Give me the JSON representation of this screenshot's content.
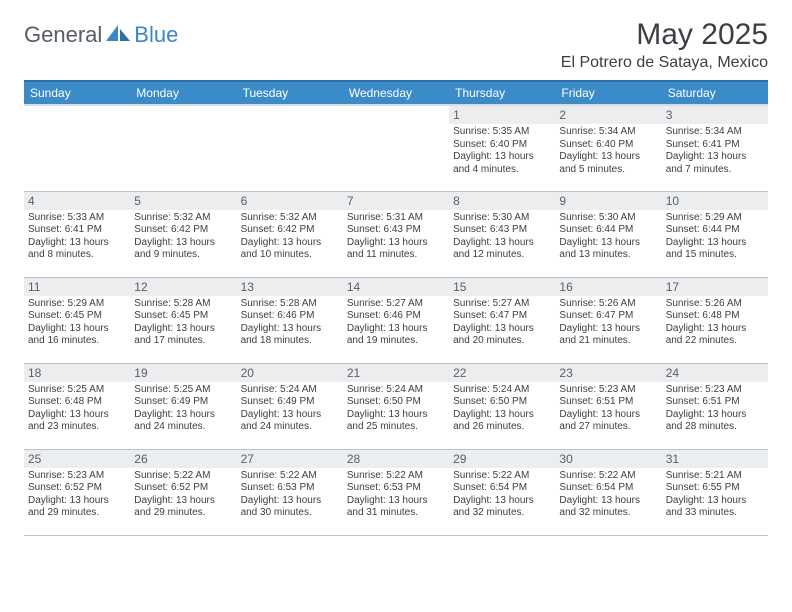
{
  "logo": {
    "general": "General",
    "blue": "Blue"
  },
  "title": "May 2025",
  "location": "El Potrero de Sataya, Mexico",
  "colors": {
    "header_bg": "#3b8bc9",
    "header_border_top": "#2f6fa7",
    "daynum_bg": "#ebedef",
    "cell_border": "#b9c1c9",
    "text": "#3a3f44",
    "logo_gray": "#555d66",
    "logo_blue": "#3a86c8"
  },
  "day_names": [
    "Sunday",
    "Monday",
    "Tuesday",
    "Wednesday",
    "Thursday",
    "Friday",
    "Saturday"
  ],
  "weeks": [
    [
      null,
      null,
      null,
      null,
      {
        "n": "1",
        "sr": "5:35 AM",
        "ss": "6:40 PM",
        "dl": "13 hours and 4 minutes."
      },
      {
        "n": "2",
        "sr": "5:34 AM",
        "ss": "6:40 PM",
        "dl": "13 hours and 5 minutes."
      },
      {
        "n": "3",
        "sr": "5:34 AM",
        "ss": "6:41 PM",
        "dl": "13 hours and 7 minutes."
      }
    ],
    [
      {
        "n": "4",
        "sr": "5:33 AM",
        "ss": "6:41 PM",
        "dl": "13 hours and 8 minutes."
      },
      {
        "n": "5",
        "sr": "5:32 AM",
        "ss": "6:42 PM",
        "dl": "13 hours and 9 minutes."
      },
      {
        "n": "6",
        "sr": "5:32 AM",
        "ss": "6:42 PM",
        "dl": "13 hours and 10 minutes."
      },
      {
        "n": "7",
        "sr": "5:31 AM",
        "ss": "6:43 PM",
        "dl": "13 hours and 11 minutes."
      },
      {
        "n": "8",
        "sr": "5:30 AM",
        "ss": "6:43 PM",
        "dl": "13 hours and 12 minutes."
      },
      {
        "n": "9",
        "sr": "5:30 AM",
        "ss": "6:44 PM",
        "dl": "13 hours and 13 minutes."
      },
      {
        "n": "10",
        "sr": "5:29 AM",
        "ss": "6:44 PM",
        "dl": "13 hours and 15 minutes."
      }
    ],
    [
      {
        "n": "11",
        "sr": "5:29 AM",
        "ss": "6:45 PM",
        "dl": "13 hours and 16 minutes."
      },
      {
        "n": "12",
        "sr": "5:28 AM",
        "ss": "6:45 PM",
        "dl": "13 hours and 17 minutes."
      },
      {
        "n": "13",
        "sr": "5:28 AM",
        "ss": "6:46 PM",
        "dl": "13 hours and 18 minutes."
      },
      {
        "n": "14",
        "sr": "5:27 AM",
        "ss": "6:46 PM",
        "dl": "13 hours and 19 minutes."
      },
      {
        "n": "15",
        "sr": "5:27 AM",
        "ss": "6:47 PM",
        "dl": "13 hours and 20 minutes."
      },
      {
        "n": "16",
        "sr": "5:26 AM",
        "ss": "6:47 PM",
        "dl": "13 hours and 21 minutes."
      },
      {
        "n": "17",
        "sr": "5:26 AM",
        "ss": "6:48 PM",
        "dl": "13 hours and 22 minutes."
      }
    ],
    [
      {
        "n": "18",
        "sr": "5:25 AM",
        "ss": "6:48 PM",
        "dl": "13 hours and 23 minutes."
      },
      {
        "n": "19",
        "sr": "5:25 AM",
        "ss": "6:49 PM",
        "dl": "13 hours and 24 minutes."
      },
      {
        "n": "20",
        "sr": "5:24 AM",
        "ss": "6:49 PM",
        "dl": "13 hours and 24 minutes."
      },
      {
        "n": "21",
        "sr": "5:24 AM",
        "ss": "6:50 PM",
        "dl": "13 hours and 25 minutes."
      },
      {
        "n": "22",
        "sr": "5:24 AM",
        "ss": "6:50 PM",
        "dl": "13 hours and 26 minutes."
      },
      {
        "n": "23",
        "sr": "5:23 AM",
        "ss": "6:51 PM",
        "dl": "13 hours and 27 minutes."
      },
      {
        "n": "24",
        "sr": "5:23 AM",
        "ss": "6:51 PM",
        "dl": "13 hours and 28 minutes."
      }
    ],
    [
      {
        "n": "25",
        "sr": "5:23 AM",
        "ss": "6:52 PM",
        "dl": "13 hours and 29 minutes."
      },
      {
        "n": "26",
        "sr": "5:22 AM",
        "ss": "6:52 PM",
        "dl": "13 hours and 29 minutes."
      },
      {
        "n": "27",
        "sr": "5:22 AM",
        "ss": "6:53 PM",
        "dl": "13 hours and 30 minutes."
      },
      {
        "n": "28",
        "sr": "5:22 AM",
        "ss": "6:53 PM",
        "dl": "13 hours and 31 minutes."
      },
      {
        "n": "29",
        "sr": "5:22 AM",
        "ss": "6:54 PM",
        "dl": "13 hours and 32 minutes."
      },
      {
        "n": "30",
        "sr": "5:22 AM",
        "ss": "6:54 PM",
        "dl": "13 hours and 32 minutes."
      },
      {
        "n": "31",
        "sr": "5:21 AM",
        "ss": "6:55 PM",
        "dl": "13 hours and 33 minutes."
      }
    ]
  ],
  "labels": {
    "sunrise": "Sunrise:",
    "sunset": "Sunset:",
    "daylight": "Daylight:"
  }
}
